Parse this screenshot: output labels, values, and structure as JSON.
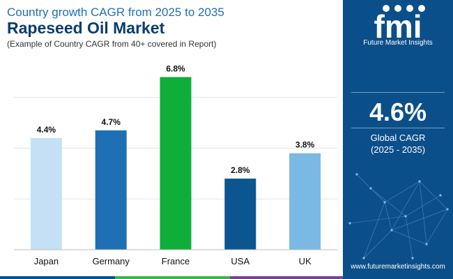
{
  "header": {
    "subtitle": "Country growth CAGR from 2025 to 2035",
    "title": "Rapeseed Oil Market",
    "note": "(Example of Country CAGR from 40+ covered in Report)"
  },
  "brand": {
    "logo_text": "fmi",
    "name": "Future Market Insights",
    "url": "www.futuremarketinsights.com"
  },
  "summary": {
    "value": "4.6%",
    "label": "Global CAGR",
    "period": "(2025 - 2035)"
  },
  "colors": {
    "panel": "#0b4f8a",
    "title": "#0b3d6e",
    "subtitle": "#1f6fb5"
  },
  "chart_data": {
    "type": "bar",
    "categories": [
      "Japan",
      "Germany",
      "France",
      "USA",
      "UK"
    ],
    "values": [
      4.4,
      4.7,
      6.8,
      2.8,
      3.8
    ],
    "data_labels": [
      "4.4%",
      "4.7%",
      "6.8%",
      "2.8%",
      "3.8%"
    ],
    "colors": [
      "#c5e0f4",
      "#1f6fb5",
      "#0fae3a",
      "#0b5590",
      "#7ab9e3"
    ],
    "ylim": [
      0,
      7.5
    ],
    "grid": true
  }
}
